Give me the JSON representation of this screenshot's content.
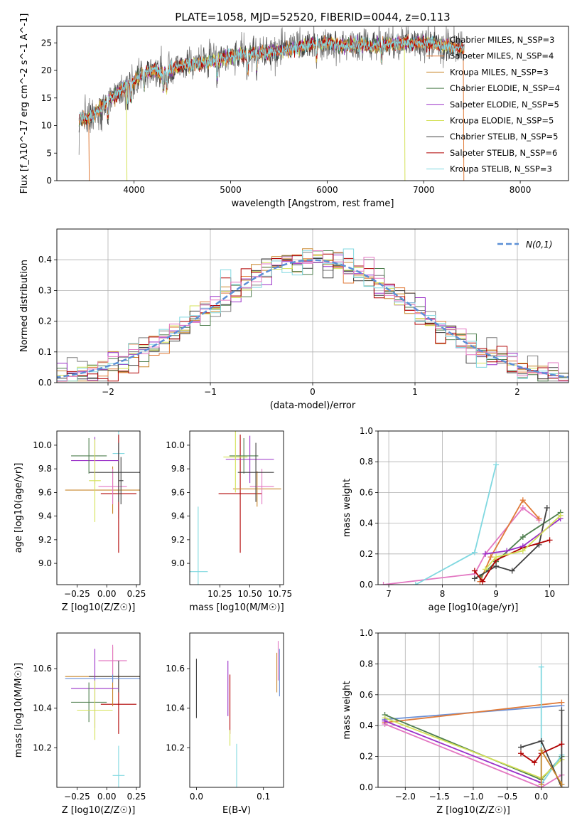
{
  "figure_title": "PLATE=1058, MJD=52520, FIBERID=0044, z=0.113",
  "colors": {
    "chabrier_miles": "#808080",
    "salpeter_miles": "#e07b39",
    "kroupa_miles": "#c8862a",
    "chabrier_elodie": "#4f7f4f",
    "salpeter_elodie": "#9a30c8",
    "kroupa_elodie": "#d4e157",
    "chabrier_stelib": "#404040",
    "salpeter_stelib": "#b00000",
    "kroupa_stelib": "#80d8e0",
    "normal_curve": "#5b8fd6",
    "pink": "#e377c2",
    "blue": "#6a8fd6"
  },
  "chart_data": [
    {
      "id": "spectrum",
      "type": "line",
      "xlabel": "wavelength [Angstrom, rest frame]",
      "ylabel": "Flux [f_λ10^-17 erg cm^-2 s^-1 A^-1]",
      "xlim": [
        3200,
        8500
      ],
      "ylim": [
        0,
        28
      ],
      "xticks": [
        4000,
        5000,
        6000,
        7000,
        8000
      ],
      "yticks": [
        0,
        5,
        10,
        15,
        20,
        25
      ],
      "grid": false,
      "legend_position": "upper-right",
      "series": [
        {
          "name": "Chabrier MILES, N_SSP=3",
          "color": "#808080"
        },
        {
          "name": "Salpeter MILES, N_SSP=4",
          "color": "#e07b39"
        },
        {
          "name": "Kroupa MILES, N_SSP=3",
          "color": "#c8862a"
        },
        {
          "name": "Chabrier ELODIE, N_SSP=4",
          "color": "#4f7f4f"
        },
        {
          "name": "Salpeter ELODIE, N_SSP=5",
          "color": "#9a30c8"
        },
        {
          "name": "Kroupa ELODIE, N_SSP=5",
          "color": "#d4e157"
        },
        {
          "name": "Chabrier STELIB, N_SSP=5",
          "color": "#404040"
        },
        {
          "name": "Salpeter STELIB, N_SSP=6",
          "color": "#b00000"
        },
        {
          "name": "Kroupa STELIB, N_SSP=3",
          "color": "#80d8e0"
        }
      ],
      "continuum": {
        "x": [
          3430,
          3550,
          3700,
          3800,
          3900,
          4000,
          4100,
          4200,
          4300,
          4500,
          4800,
          5000,
          5200,
          5500,
          5800,
          6000,
          6200,
          6500,
          6800,
          7000,
          7200,
          7400
        ],
        "y": [
          11.0,
          11.5,
          14.0,
          15.5,
          17.0,
          18.0,
          19.5,
          20.0,
          19.5,
          21.0,
          21.5,
          22.5,
          23.0,
          23.5,
          24.5,
          25.0,
          24.5,
          24.5,
          25.0,
          25.0,
          24.5,
          24.0
        ]
      }
    },
    {
      "id": "residual_hist",
      "type": "line",
      "xlabel": "(data-model)/error",
      "ylabel": "Normed distribution",
      "xlim": [
        -2.5,
        2.5
      ],
      "ylim": [
        0,
        0.5
      ],
      "xticks": [
        -2,
        -1,
        0,
        1,
        2
      ],
      "yticks": [
        0.0,
        0.1,
        0.2,
        0.3,
        0.4
      ],
      "grid": true,
      "legend_position": "upper-right",
      "normal_label": "N(0,1)",
      "bin_width": 0.1
    },
    {
      "id": "age_vs_Z",
      "type": "scatter",
      "xlabel": "Z [log10(Z/Z☉)]",
      "ylabel": "age [log10(age/yr)]",
      "xlim": [
        -0.42,
        0.28
      ],
      "ylim": [
        8.82,
        10.12
      ],
      "xticks": [
        -0.25,
        0.0,
        0.25
      ],
      "xticklabels": [
        "−0.25",
        "0.00",
        "0.25"
      ],
      "yticks": [
        9.0,
        9.2,
        9.4,
        9.6,
        9.8,
        10.0
      ],
      "points": [
        {
          "x": 0.1,
          "y": 9.93,
          "xerr": 0.05,
          "yerr": 0.55,
          "color": "#80d8e0"
        },
        {
          "x": 0.05,
          "y": 9.62,
          "xerr": 0.4,
          "yerr": 0.2,
          "color": "#c8862a"
        },
        {
          "x": 0.1,
          "y": 9.59,
          "xerr": 0.15,
          "yerr": 0.5,
          "color": "#b00000"
        },
        {
          "x": 0.05,
          "y": 9.65,
          "xerr": 0.12,
          "yerr": 0.15,
          "color": "#e377c2"
        },
        {
          "x": 0.1,
          "y": 9.77,
          "xerr": 0.25,
          "yerr": 0.25,
          "color": "#404040"
        },
        {
          "x": -0.1,
          "y": 9.87,
          "xerr": 0.2,
          "yerr": 0.2,
          "color": "#9a30c8"
        },
        {
          "x": -0.15,
          "y": 9.91,
          "xerr": 0.15,
          "yerr": 0.15,
          "color": "#4f7f4f"
        },
        {
          "x": 0.12,
          "y": 9.7,
          "xerr": 0.02,
          "yerr": 0.2,
          "color": "#404040"
        },
        {
          "x": -0.1,
          "y": 9.7,
          "xerr": 0.05,
          "yerr": 0.35,
          "color": "#d4e157"
        }
      ]
    },
    {
      "id": "age_vs_mass",
      "type": "scatter",
      "xlabel": "mass [log10(M/M☉)]",
      "ylabel": "",
      "xlim": [
        10.0,
        10.78
      ],
      "ylim": [
        8.82,
        10.12
      ],
      "xticks": [
        10.25,
        10.5,
        10.75
      ],
      "xticklabels": [
        "10.25",
        "10.50",
        "10.75"
      ],
      "yticks": [
        9.0,
        9.2,
        9.4,
        9.6,
        9.8,
        10.0
      ],
      "points": [
        {
          "x": 10.07,
          "y": 8.93,
          "xerr": 0.08,
          "yerr": 0.55,
          "color": "#80d8e0"
        },
        {
          "x": 10.42,
          "y": 9.59,
          "xerr": 0.18,
          "yerr": 0.5,
          "color": "#b00000"
        },
        {
          "x": 10.56,
          "y": 9.63,
          "xerr": 0.2,
          "yerr": 0.15,
          "color": "#c8862a"
        },
        {
          "x": 10.6,
          "y": 9.65,
          "xerr": 0.1,
          "yerr": 0.15,
          "color": "#e377c2"
        },
        {
          "x": 10.5,
          "y": 9.88,
          "xerr": 0.2,
          "yerr": 0.2,
          "color": "#9a30c8"
        },
        {
          "x": 10.45,
          "y": 9.91,
          "xerr": 0.12,
          "yerr": 0.15,
          "color": "#4f7f4f"
        },
        {
          "x": 10.38,
          "y": 9.9,
          "xerr": 0.1,
          "yerr": 0.3,
          "color": "#d4e157"
        },
        {
          "x": 10.55,
          "y": 9.77,
          "xerr": 0.15,
          "yerr": 0.25,
          "color": "#404040"
        }
      ]
    },
    {
      "id": "weight_vs_age",
      "type": "line",
      "xlabel": "age [log10(age/yr)]",
      "ylabel": "mass weight",
      "xlim": [
        6.8,
        10.35
      ],
      "ylim": [
        0,
        1.0
      ],
      "xticks": [
        7,
        8,
        9,
        10
      ],
      "yticks": [
        0.0,
        0.2,
        0.4,
        0.6,
        0.8,
        1.0
      ],
      "grid": true,
      "series": [
        {
          "color": "#e377c2",
          "x": [
            6.9,
            8.6,
            8.8,
            9.5,
            9.8
          ],
          "y": [
            0.0,
            0.07,
            0.2,
            0.5,
            0.42
          ]
        },
        {
          "color": "#80d8e0",
          "x": [
            7.5,
            8.6,
            9.0
          ],
          "y": [
            0.0,
            0.21,
            0.78
          ]
        },
        {
          "color": "#e07b39",
          "x": [
            8.7,
            8.9,
            9.5,
            9.8
          ],
          "y": [
            0.02,
            0.18,
            0.55,
            0.43
          ]
        },
        {
          "color": "#4f7f4f",
          "x": [
            8.7,
            9.0,
            9.5,
            10.2
          ],
          "y": [
            0.05,
            0.15,
            0.31,
            0.47
          ]
        },
        {
          "color": "#404040",
          "x": [
            8.6,
            9.0,
            9.3,
            9.8,
            9.95
          ],
          "y": [
            0.04,
            0.12,
            0.09,
            0.26,
            0.5
          ]
        },
        {
          "color": "#b00000",
          "x": [
            8.6,
            8.75,
            9.0,
            9.5,
            10.0
          ],
          "y": [
            0.09,
            0.02,
            0.16,
            0.24,
            0.29
          ]
        },
        {
          "color": "#9a30c8",
          "x": [
            8.8,
            9.2,
            9.5,
            10.2
          ],
          "y": [
            0.2,
            0.22,
            0.25,
            0.43
          ]
        },
        {
          "color": "#d4e157",
          "x": [
            8.8,
            9.0,
            9.5,
            10.2
          ],
          "y": [
            0.1,
            0.18,
            0.22,
            0.45
          ]
        }
      ]
    },
    {
      "id": "mass_vs_Z",
      "type": "scatter",
      "xlabel": "Z [log10(Z/Z☉)]",
      "ylabel": "mass [log10(M/M☉)]",
      "xlim": [
        -0.42,
        0.28
      ],
      "ylim": [
        10.0,
        10.78
      ],
      "xticks": [
        -0.25,
        0.0,
        0.25
      ],
      "xticklabels": [
        "−0.25",
        "0.00",
        "0.25"
      ],
      "yticks": [
        10.2,
        10.4,
        10.6
      ],
      "points": [
        {
          "x": 0.1,
          "y": 10.06,
          "xerr": 0.05,
          "yerr": 0.15,
          "color": "#80d8e0"
        },
        {
          "x": 0.1,
          "y": 10.42,
          "xerr": 0.15,
          "yerr": 0.15,
          "color": "#b00000"
        },
        {
          "x": 0.05,
          "y": 10.56,
          "xerr": 0.4,
          "yerr": 0.15,
          "color": "#c8862a"
        },
        {
          "x": 0.05,
          "y": 10.64,
          "xerr": 0.12,
          "yerr": 0.08,
          "color": "#e377c2"
        },
        {
          "x": 0.1,
          "y": 10.56,
          "xerr": 0.25,
          "yerr": 0.08,
          "color": "#404040"
        },
        {
          "x": -0.1,
          "y": 10.5,
          "xerr": 0.2,
          "yerr": 0.2,
          "color": "#9a30c8"
        },
        {
          "x": -0.15,
          "y": 10.43,
          "xerr": 0.15,
          "yerr": 0.1,
          "color": "#4f7f4f"
        },
        {
          "x": -0.1,
          "y": 10.39,
          "xerr": 0.15,
          "yerr": 0.15,
          "color": "#d4e157"
        },
        {
          "x": 0.05,
          "y": 10.55,
          "xerr": 0.4,
          "yerr": 0.02,
          "color": "#6a8fd6"
        }
      ]
    },
    {
      "id": "mass_vs_ebv",
      "type": "scatter",
      "xlabel": "E(B-V)",
      "ylabel": "",
      "xlim": [
        -0.01,
        0.13
      ],
      "ylim": [
        10.0,
        10.78
      ],
      "xticks": [
        0.0,
        0.1
      ],
      "xticklabels": [
        "0.0",
        "0.1"
      ],
      "yticks": [
        10.2,
        10.4,
        10.6
      ],
      "points": [
        {
          "x": 0.0,
          "y": 10.5,
          "xerr": 0,
          "yerr": 0.15,
          "color": "#404040"
        },
        {
          "x": 0.047,
          "y": 10.5,
          "xerr": 0,
          "yerr": 0.14,
          "color": "#9a30c8"
        },
        {
          "x": 0.05,
          "y": 10.42,
          "xerr": 0,
          "yerr": 0.15,
          "color": "#b00000"
        },
        {
          "x": 0.05,
          "y": 10.25,
          "xerr": 0,
          "yerr": 0.04,
          "color": "#d4e157"
        },
        {
          "x": 0.06,
          "y": 10.1,
          "xerr": 0,
          "yerr": 0.12,
          "color": "#80d8e0"
        },
        {
          "x": 0.12,
          "y": 10.58,
          "xerr": 0,
          "yerr": 0.1,
          "color": "#c8862a"
        },
        {
          "x": 0.122,
          "y": 10.64,
          "xerr": 0,
          "yerr": 0.1,
          "color": "#e377c2"
        },
        {
          "x": 0.124,
          "y": 10.58,
          "xerr": 0,
          "yerr": 0.12,
          "color": "#6a8fd6"
        }
      ]
    },
    {
      "id": "weight_vs_Z",
      "type": "line",
      "xlabel": "Z [log10(Z/Z☉)]",
      "ylabel": "mass weight",
      "xlim": [
        -2.4,
        0.4
      ],
      "ylim": [
        0,
        1.0
      ],
      "xticks": [
        -2.0,
        -1.5,
        -1.0,
        -0.5,
        0.0
      ],
      "xticklabels": [
        "−2.0",
        "−1.5",
        "−1.0",
        "−0.5",
        "0.0"
      ],
      "yticks": [
        0.0,
        0.2,
        0.4,
        0.6,
        0.8,
        1.0
      ],
      "grid": true,
      "series": [
        {
          "color": "#6a8fd6",
          "x": [
            -2.3,
            0.3
          ],
          "y": [
            0.44,
            0.53
          ]
        },
        {
          "color": "#e07b39",
          "x": [
            -2.3,
            0.3
          ],
          "y": [
            0.42,
            0.55
          ]
        },
        {
          "color": "#4f7f4f",
          "x": [
            -2.3,
            0.0,
            0.3
          ],
          "y": [
            0.47,
            0.05,
            0.2
          ]
        },
        {
          "color": "#d4e157",
          "x": [
            -2.3,
            0.0,
            0.3
          ],
          "y": [
            0.45,
            0.06,
            0.18
          ]
        },
        {
          "color": "#e377c2",
          "x": [
            -2.3,
            0.0,
            0.3
          ],
          "y": [
            0.41,
            0.0,
            0.08
          ]
        },
        {
          "color": "#9a30c8",
          "x": [
            -2.3,
            0.0
          ],
          "y": [
            0.43,
            0.03
          ]
        },
        {
          "color": "#80d8e0",
          "x": [
            0.0,
            0.0,
            0.3
          ],
          "y": [
            0.78,
            0.02,
            0.21
          ]
        },
        {
          "color": "#404040",
          "x": [
            -0.3,
            0.0,
            0.3,
            0.3
          ],
          "y": [
            0.26,
            0.3,
            0.0,
            0.5
          ]
        },
        {
          "color": "#b00000",
          "x": [
            -0.3,
            -0.1,
            0.0,
            0.3
          ],
          "y": [
            0.22,
            0.16,
            0.22,
            0.28
          ]
        },
        {
          "color": "#c8862a",
          "x": [
            0.0,
            0.0,
            0.3
          ],
          "y": [
            0.02,
            0.24,
            0.02
          ]
        }
      ]
    }
  ]
}
